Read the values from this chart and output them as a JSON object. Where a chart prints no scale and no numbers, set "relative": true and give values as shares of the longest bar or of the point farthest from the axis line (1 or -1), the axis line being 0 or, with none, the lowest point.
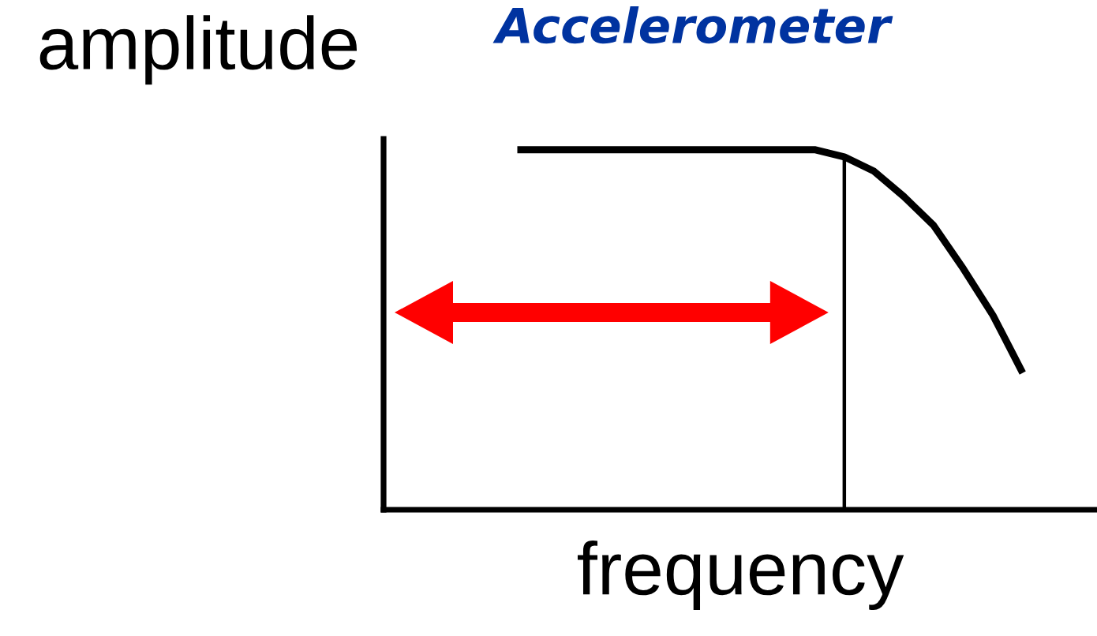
{
  "chart_data": {
    "type": "line",
    "title": "Accelerometer",
    "xlabel": "frequency",
    "ylabel": "amplitude",
    "relative": true,
    "categories": [
      null,
      null,
      null,
      null,
      null,
      null,
      null,
      null,
      null,
      null,
      null,
      null,
      null,
      null,
      null,
      null,
      null,
      null,
      null,
      null,
      null,
      null,
      null,
      null
    ],
    "series": [
      {
        "color": "#000000",
        "values": [
          null,
          null,
          null,
          null,
          1,
          1,
          1,
          1,
          1,
          1,
          1,
          1,
          1,
          1,
          1,
          0.98,
          0.94,
          0.87,
          0.79,
          0.67,
          0.54,
          0.38,
          null,
          null
        ]
      }
    ],
    "marker": "none",
    "line_style": "solid"
  }
}
